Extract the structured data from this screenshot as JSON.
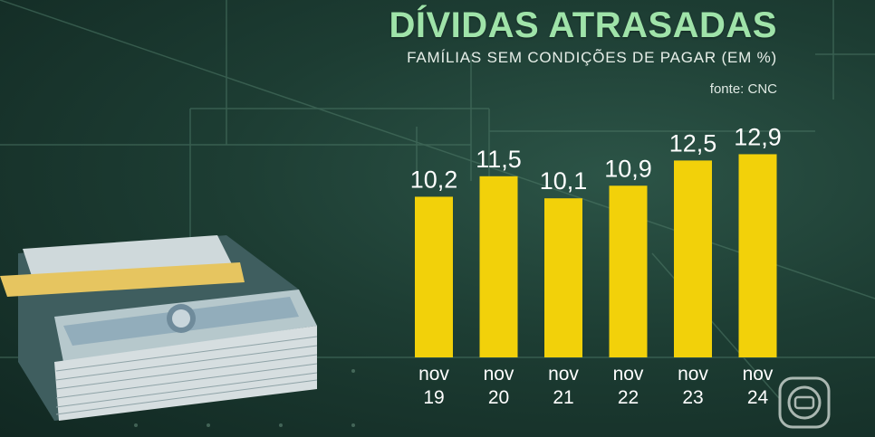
{
  "header": {
    "title": "DÍVIDAS ATRASADAS",
    "subtitle": "FAMÍLIAS SEM CONDIÇÕES DE PAGAR (EM %)",
    "source": "fonte: CNC"
  },
  "colors": {
    "bar": "#f2d10a",
    "title": "#9fe3a9",
    "background": "#1d3d33"
  },
  "decor": {
    "banknote_icon": "money-stack-icon",
    "logo_icon": "broadcaster-logo-icon"
  },
  "chart_data": {
    "type": "bar",
    "title": "DÍVIDAS ATRASADAS",
    "subtitle": "FAMÍLIAS SEM CONDIÇÕES DE PAGAR (EM %)",
    "categories": [
      "nov 19",
      "nov 20",
      "nov 21",
      "nov 22",
      "nov 23",
      "nov 24"
    ],
    "category_lines": [
      [
        "nov",
        "19"
      ],
      [
        "nov",
        "20"
      ],
      [
        "nov",
        "21"
      ],
      [
        "nov",
        "22"
      ],
      [
        "nov",
        "23"
      ],
      [
        "nov",
        "24"
      ]
    ],
    "values": [
      10.2,
      11.5,
      10.1,
      10.9,
      12.5,
      12.9
    ],
    "value_labels": [
      "10,2",
      "11,5",
      "10,1",
      "10,9",
      "12,5",
      "12,9"
    ],
    "ylim": [
      0,
      13.5
    ],
    "grid": false,
    "legend": "none"
  }
}
